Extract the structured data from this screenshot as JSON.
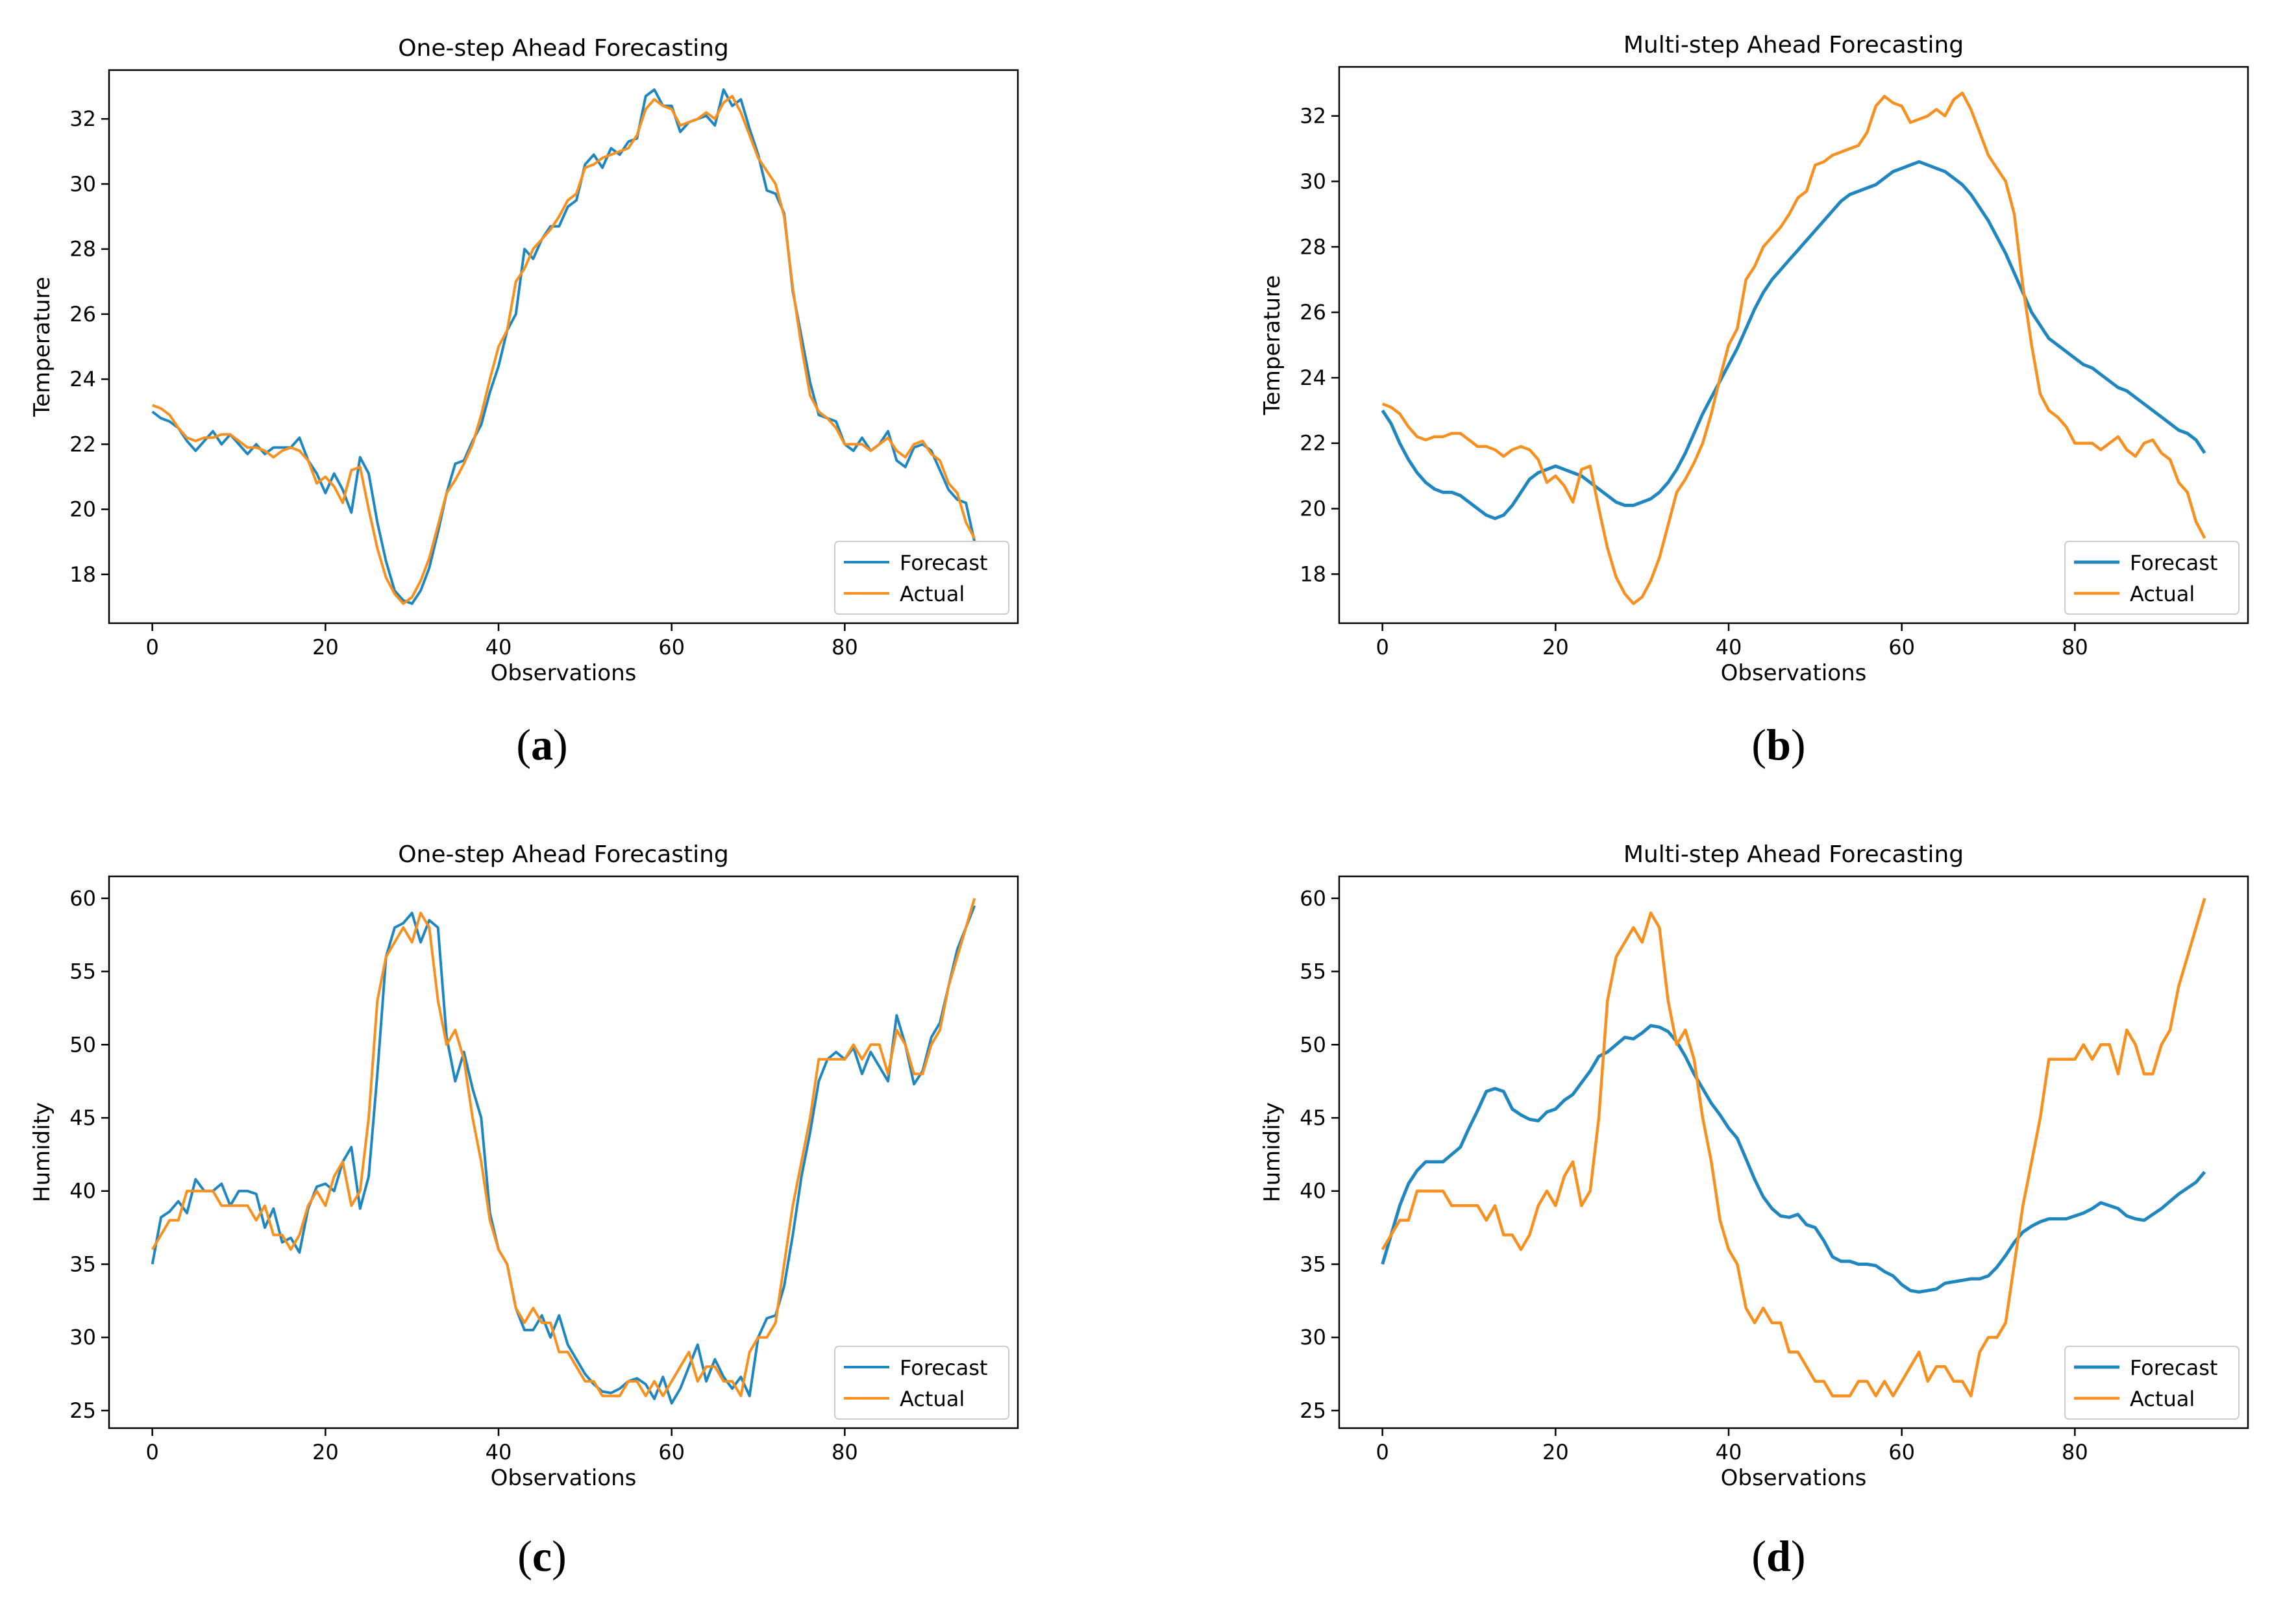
{
  "colors": {
    "forecast": "#1f86c0",
    "actual": "#f7901e",
    "axis": "#000000"
  },
  "chart_data": [
    {
      "type": "line",
      "panel": "a",
      "title": "One-step Ahead Forecasting",
      "xlabel": "Observations",
      "ylabel": "Temperature",
      "xlim": [
        -5,
        100
      ],
      "ylim": [
        16.5,
        33.5
      ],
      "xticks": [
        0,
        20,
        40,
        60,
        80
      ],
      "yticks": [
        18,
        20,
        22,
        24,
        26,
        28,
        30,
        32
      ],
      "legend": "lower-right",
      "grid": false,
      "series": [
        {
          "name": "Forecast",
          "values": [
            23.0,
            22.8,
            22.7,
            22.5,
            22.1,
            21.8,
            22.1,
            22.4,
            22.0,
            22.3,
            22.0,
            21.7,
            22.0,
            21.7,
            21.9,
            21.9,
            21.9,
            22.2,
            21.5,
            21.1,
            20.5,
            21.1,
            20.6,
            19.9,
            21.6,
            21.1,
            19.6,
            18.4,
            17.5,
            17.2,
            17.1,
            17.5,
            18.2,
            19.3,
            20.5,
            21.4,
            21.5,
            22.1,
            22.6,
            23.6,
            24.4,
            25.5,
            26.0,
            28.0,
            27.7,
            28.3,
            28.7,
            28.7,
            29.3,
            29.5,
            30.6,
            30.9,
            30.5,
            31.1,
            30.9,
            31.3,
            31.4,
            32.7,
            32.9,
            32.4,
            32.4,
            31.6,
            31.9,
            32.0,
            32.1,
            31.8,
            32.9,
            32.4,
            32.6,
            31.7,
            30.9,
            29.8,
            29.7,
            29.1,
            26.7,
            25.3,
            23.9,
            22.9,
            22.8,
            22.7,
            22.0,
            21.8,
            22.2,
            21.8,
            22.0,
            22.4,
            21.5,
            21.3,
            21.9,
            22.0,
            21.8,
            21.2,
            20.6,
            20.3,
            20.2,
            19.0
          ]
        },
        {
          "name": "Actual",
          "values": [
            23.2,
            23.1,
            22.9,
            22.5,
            22.2,
            22.1,
            22.2,
            22.2,
            22.3,
            22.3,
            22.1,
            21.9,
            21.9,
            21.8,
            21.6,
            21.8,
            21.9,
            21.8,
            21.5,
            20.8,
            21.0,
            20.7,
            20.2,
            21.2,
            21.3,
            20.0,
            18.8,
            17.9,
            17.4,
            17.1,
            17.3,
            17.8,
            18.5,
            19.5,
            20.5,
            20.9,
            21.4,
            22.0,
            22.9,
            24.0,
            25.0,
            25.5,
            27.0,
            27.4,
            28.0,
            28.3,
            28.6,
            29.0,
            29.5,
            29.7,
            30.5,
            30.6,
            30.8,
            30.9,
            31.0,
            31.1,
            31.5,
            32.3,
            32.6,
            32.4,
            32.3,
            31.8,
            31.9,
            32.0,
            32.2,
            32.0,
            32.5,
            32.7,
            32.2,
            31.5,
            30.8,
            30.4,
            30.0,
            29.0,
            26.8,
            25.0,
            23.5,
            23.0,
            22.8,
            22.5,
            22.0,
            22.0,
            22.0,
            21.8,
            22.0,
            22.2,
            21.8,
            21.6,
            22.0,
            22.1,
            21.7,
            21.5,
            20.8,
            20.5,
            19.6,
            19.1
          ]
        }
      ]
    },
    {
      "type": "line",
      "panel": "b",
      "title": "Multi-step Ahead Forecasting",
      "xlabel": "Observations",
      "ylabel": "Temperature",
      "xlim": [
        -5,
        100
      ],
      "ylim": [
        16.5,
        33.5
      ],
      "xticks": [
        0,
        20,
        40,
        60,
        80
      ],
      "yticks": [
        18,
        20,
        22,
        24,
        26,
        28,
        30,
        32
      ],
      "legend": "lower-right",
      "grid": false,
      "series": [
        {
          "name": "Forecast",
          "values": [
            23.0,
            22.6,
            22.0,
            21.5,
            21.1,
            20.8,
            20.6,
            20.5,
            20.5,
            20.4,
            20.2,
            20.0,
            19.8,
            19.7,
            19.8,
            20.1,
            20.5,
            20.9,
            21.1,
            21.2,
            21.3,
            21.2,
            21.1,
            21.0,
            20.8,
            20.6,
            20.4,
            20.2,
            20.1,
            20.1,
            20.2,
            20.3,
            20.5,
            20.8,
            21.2,
            21.7,
            22.3,
            22.9,
            23.4,
            23.9,
            24.4,
            24.9,
            25.5,
            26.1,
            26.6,
            27.0,
            27.3,
            27.6,
            27.9,
            28.2,
            28.5,
            28.8,
            29.1,
            29.4,
            29.6,
            29.7,
            29.8,
            29.9,
            30.1,
            30.3,
            30.4,
            30.5,
            30.6,
            30.5,
            30.4,
            30.3,
            30.1,
            29.9,
            29.6,
            29.2,
            28.8,
            28.3,
            27.8,
            27.2,
            26.6,
            26.0,
            25.6,
            25.2,
            25.0,
            24.8,
            24.6,
            24.4,
            24.3,
            24.1,
            23.9,
            23.7,
            23.6,
            23.4,
            23.2,
            23.0,
            22.8,
            22.6,
            22.4,
            22.3,
            22.1,
            21.7
          ]
        },
        {
          "name": "Actual",
          "values": [
            23.2,
            23.1,
            22.9,
            22.5,
            22.2,
            22.1,
            22.2,
            22.2,
            22.3,
            22.3,
            22.1,
            21.9,
            21.9,
            21.8,
            21.6,
            21.8,
            21.9,
            21.8,
            21.5,
            20.8,
            21.0,
            20.7,
            20.2,
            21.2,
            21.3,
            20.0,
            18.8,
            17.9,
            17.4,
            17.1,
            17.3,
            17.8,
            18.5,
            19.5,
            20.5,
            20.9,
            21.4,
            22.0,
            22.9,
            24.0,
            25.0,
            25.5,
            27.0,
            27.4,
            28.0,
            28.3,
            28.6,
            29.0,
            29.5,
            29.7,
            30.5,
            30.6,
            30.8,
            30.9,
            31.0,
            31.1,
            31.5,
            32.3,
            32.6,
            32.4,
            32.3,
            31.8,
            31.9,
            32.0,
            32.2,
            32.0,
            32.5,
            32.7,
            32.2,
            31.5,
            30.8,
            30.4,
            30.0,
            29.0,
            26.8,
            25.0,
            23.5,
            23.0,
            22.8,
            22.5,
            22.0,
            22.0,
            22.0,
            21.8,
            22.0,
            22.2,
            21.8,
            21.6,
            22.0,
            22.1,
            21.7,
            21.5,
            20.8,
            20.5,
            19.6,
            19.1
          ]
        }
      ]
    },
    {
      "type": "line",
      "panel": "c",
      "title": "One-step Ahead Forecasting",
      "xlabel": "Observations",
      "ylabel": "Humidity",
      "xlim": [
        -5,
        100
      ],
      "ylim": [
        23.8,
        61.5
      ],
      "xticks": [
        0,
        20,
        40,
        60,
        80
      ],
      "yticks": [
        25,
        30,
        35,
        40,
        45,
        50,
        55,
        60
      ],
      "legend": "lower-right",
      "grid": false,
      "series": [
        {
          "name": "Forecast",
          "values": [
            35.0,
            38.2,
            38.6,
            39.3,
            38.5,
            40.8,
            40.0,
            40.0,
            40.5,
            39.0,
            40.0,
            40.0,
            39.8,
            37.5,
            38.8,
            36.5,
            36.8,
            35.8,
            38.8,
            40.3,
            40.5,
            40.0,
            42.0,
            43.0,
            38.8,
            41.0,
            48.0,
            56.0,
            58.0,
            58.3,
            59.0,
            57.0,
            58.5,
            58.0,
            50.5,
            47.5,
            49.5,
            47.0,
            45.0,
            38.5,
            36.0,
            35.0,
            32.0,
            30.5,
            30.5,
            31.5,
            30.0,
            31.5,
            29.5,
            28.5,
            27.5,
            26.8,
            26.3,
            26.2,
            26.5,
            27.0,
            27.2,
            26.8,
            25.8,
            27.3,
            25.5,
            26.5,
            28.0,
            29.5,
            27.0,
            28.5,
            27.3,
            26.5,
            27.3,
            26.0,
            30.0,
            31.3,
            31.5,
            33.5,
            37.0,
            41.0,
            44.0,
            47.5,
            49.0,
            49.5,
            49.0,
            49.8,
            48.0,
            49.5,
            48.5,
            47.5,
            52.0,
            50.0,
            47.3,
            48.2,
            50.5,
            51.5,
            54.0,
            56.5,
            58.0,
            59.5
          ]
        },
        {
          "name": "Actual",
          "values": [
            36.0,
            37.0,
            38.0,
            38.0,
            40.0,
            40.0,
            40.0,
            40.0,
            39.0,
            39.0,
            39.0,
            39.0,
            38.0,
            39.0,
            37.0,
            37.0,
            36.0,
            37.0,
            39.0,
            40.0,
            39.0,
            41.0,
            42.0,
            39.0,
            40.0,
            45.0,
            53.0,
            56.0,
            57.0,
            58.0,
            57.0,
            59.0,
            58.0,
            53.0,
            50.0,
            51.0,
            49.0,
            45.0,
            42.0,
            38.0,
            36.0,
            35.0,
            32.0,
            31.0,
            32.0,
            31.0,
            31.0,
            29.0,
            29.0,
            28.0,
            27.0,
            27.0,
            26.0,
            26.0,
            26.0,
            27.0,
            27.0,
            26.0,
            27.0,
            26.0,
            27.0,
            28.0,
            29.0,
            27.0,
            28.0,
            28.0,
            27.0,
            27.0,
            26.0,
            29.0,
            30.0,
            30.0,
            31.0,
            35.0,
            39.0,
            42.0,
            45.0,
            49.0,
            49.0,
            49.0,
            49.0,
            50.0,
            49.0,
            50.0,
            50.0,
            48.0,
            51.0,
            50.0,
            48.0,
            48.0,
            50.0,
            51.0,
            54.0,
            56.0,
            58.0,
            60.0
          ]
        }
      ]
    },
    {
      "type": "line",
      "panel": "d",
      "title": "Multi-step Ahead Forecasting",
      "xlabel": "Observations",
      "ylabel": "Humidity",
      "xlim": [
        -5,
        100
      ],
      "ylim": [
        23.8,
        61.5
      ],
      "xticks": [
        0,
        20,
        40,
        60,
        80
      ],
      "yticks": [
        25,
        30,
        35,
        40,
        45,
        50,
        55,
        60
      ],
      "legend": "lower-right",
      "grid": false,
      "series": [
        {
          "name": "Forecast",
          "values": [
            35.0,
            37.0,
            39.0,
            40.5,
            41.4,
            42.0,
            42.0,
            42.0,
            42.5,
            43.0,
            44.3,
            45.5,
            46.8,
            47.0,
            46.8,
            45.6,
            45.2,
            44.9,
            44.8,
            45.4,
            45.6,
            46.2,
            46.6,
            47.4,
            48.2,
            49.2,
            49.5,
            50.0,
            50.5,
            50.4,
            50.8,
            51.3,
            51.2,
            50.9,
            50.2,
            49.2,
            48.0,
            47.0,
            46.0,
            45.2,
            44.3,
            43.6,
            42.2,
            40.8,
            39.6,
            38.8,
            38.3,
            38.2,
            38.4,
            37.7,
            37.5,
            36.6,
            35.5,
            35.2,
            35.2,
            35.0,
            35.0,
            34.9,
            34.5,
            34.2,
            33.6,
            33.2,
            33.1,
            33.2,
            33.3,
            33.7,
            33.8,
            33.9,
            34.0,
            34.0,
            34.2,
            34.8,
            35.6,
            36.5,
            37.2,
            37.6,
            37.9,
            38.1,
            38.1,
            38.1,
            38.3,
            38.5,
            38.8,
            39.2,
            39.0,
            38.8,
            38.3,
            38.1,
            38.0,
            38.4,
            38.8,
            39.3,
            39.8,
            40.2,
            40.6,
            41.3
          ]
        },
        {
          "name": "Actual",
          "values": [
            36.0,
            37.0,
            38.0,
            38.0,
            40.0,
            40.0,
            40.0,
            40.0,
            39.0,
            39.0,
            39.0,
            39.0,
            38.0,
            39.0,
            37.0,
            37.0,
            36.0,
            37.0,
            39.0,
            40.0,
            39.0,
            41.0,
            42.0,
            39.0,
            40.0,
            45.0,
            53.0,
            56.0,
            57.0,
            58.0,
            57.0,
            59.0,
            58.0,
            53.0,
            50.0,
            51.0,
            49.0,
            45.0,
            42.0,
            38.0,
            36.0,
            35.0,
            32.0,
            31.0,
            32.0,
            31.0,
            31.0,
            29.0,
            29.0,
            28.0,
            27.0,
            27.0,
            26.0,
            26.0,
            26.0,
            27.0,
            27.0,
            26.0,
            27.0,
            26.0,
            27.0,
            28.0,
            29.0,
            27.0,
            28.0,
            28.0,
            27.0,
            27.0,
            26.0,
            29.0,
            30.0,
            30.0,
            31.0,
            35.0,
            39.0,
            42.0,
            45.0,
            49.0,
            49.0,
            49.0,
            49.0,
            50.0,
            49.0,
            50.0,
            50.0,
            48.0,
            51.0,
            50.0,
            48.0,
            48.0,
            50.0,
            51.0,
            54.0,
            56.0,
            58.0,
            60.0
          ]
        }
      ]
    }
  ],
  "panel_labels": [
    {
      "open": "(",
      "letter": "a",
      "close": ")"
    },
    {
      "open": "(",
      "letter": "b",
      "close": ")"
    },
    {
      "open": "(",
      "letter": "c",
      "close": ")"
    },
    {
      "open": "(",
      "letter": "d",
      "close": ")"
    }
  ]
}
